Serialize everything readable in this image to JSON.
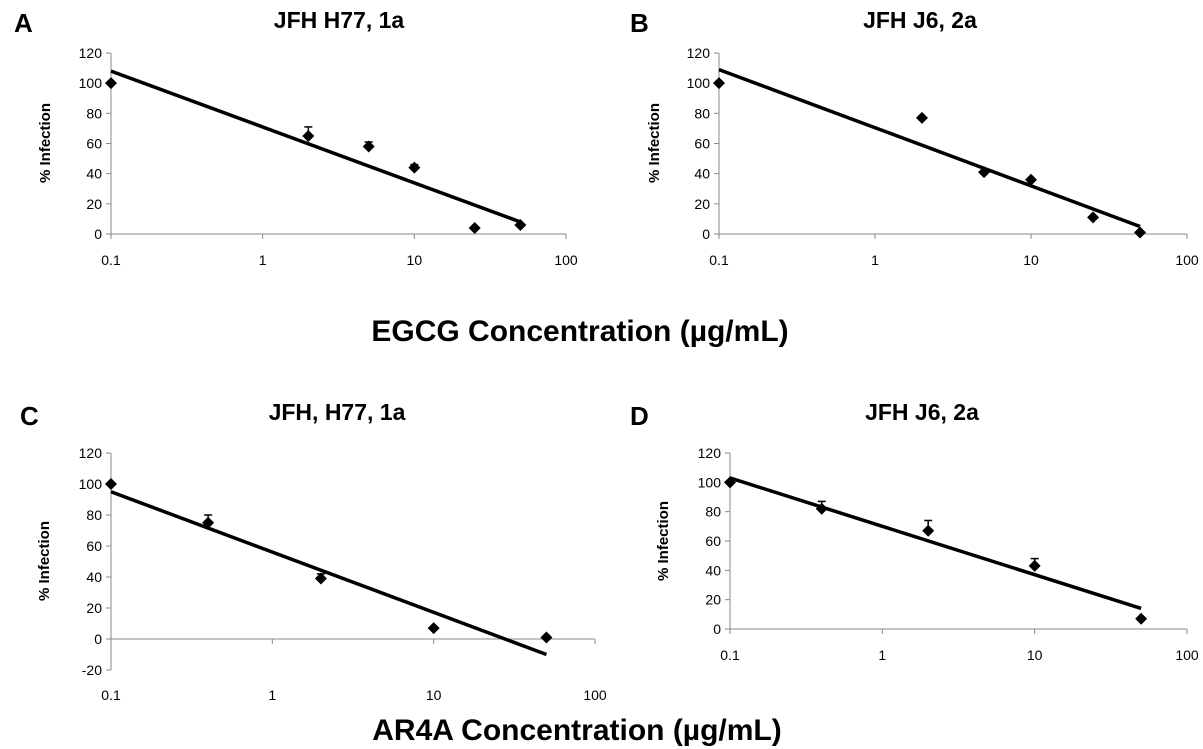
{
  "figure": {
    "xlabel_top": "EGCG Concentration (µg/mL)",
    "xlabel_bottom": "AR4A Concentration (µg/mL)"
  },
  "chart_data": [
    {
      "panel": "A",
      "type": "scatter",
      "title": "JFH H77, 1a",
      "ylabel": "% Infection",
      "xlabel": "",
      "xscale": "log",
      "xlim": [
        0.1,
        100
      ],
      "ylim": [
        0,
        120
      ],
      "xticks": [
        "0.1",
        "1",
        "10",
        "100"
      ],
      "yticks": [
        "0",
        "20",
        "40",
        "60",
        "80",
        "100",
        "120"
      ],
      "grid": false,
      "points": [
        {
          "x": 0.1,
          "y": 100,
          "err": 0
        },
        {
          "x": 2,
          "y": 65,
          "err": 6
        },
        {
          "x": 5,
          "y": 58,
          "err": 3
        },
        {
          "x": 10,
          "y": 44,
          "err": 2
        },
        {
          "x": 25,
          "y": 4,
          "err": 0
        },
        {
          "x": 50,
          "y": 6,
          "err": 0
        }
      ],
      "trendline": [
        {
          "x": 0.1,
          "y": 108
        },
        {
          "x": 50,
          "y": 8
        }
      ]
    },
    {
      "panel": "B",
      "type": "scatter",
      "title": "JFH J6, 2a",
      "ylabel": "% Infection",
      "xlabel": "",
      "xscale": "log",
      "xlim": [
        0.1,
        100
      ],
      "ylim": [
        0,
        120
      ],
      "xticks": [
        "0.1",
        "1",
        "10",
        "100"
      ],
      "yticks": [
        "0",
        "20",
        "40",
        "60",
        "80",
        "100",
        "120"
      ],
      "grid": false,
      "points": [
        {
          "x": 0.1,
          "y": 100,
          "err": 0
        },
        {
          "x": 2,
          "y": 77,
          "err": 0
        },
        {
          "x": 5,
          "y": 41,
          "err": 0
        },
        {
          "x": 10,
          "y": 36,
          "err": 0
        },
        {
          "x": 25,
          "y": 11,
          "err": 0
        },
        {
          "x": 50,
          "y": 1,
          "err": 0
        }
      ],
      "trendline": [
        {
          "x": 0.1,
          "y": 109
        },
        {
          "x": 50,
          "y": 5
        }
      ]
    },
    {
      "panel": "C",
      "type": "scatter",
      "title": "JFH, H77, 1a",
      "ylabel": "% Infection",
      "xlabel": "",
      "xscale": "log",
      "xlim": [
        0.1,
        100
      ],
      "ylim": [
        -20,
        120
      ],
      "xticks": [
        "0.1",
        "1",
        "10",
        "100"
      ],
      "yticks": [
        "-20",
        "0",
        "20",
        "40",
        "60",
        "80",
        "100",
        "120"
      ],
      "grid": false,
      "points": [
        {
          "x": 0.1,
          "y": 100,
          "err": 0
        },
        {
          "x": 0.4,
          "y": 75,
          "err": 5
        },
        {
          "x": 2,
          "y": 39,
          "err": 3
        },
        {
          "x": 10,
          "y": 7,
          "err": 0
        },
        {
          "x": 50,
          "y": 1,
          "err": 0
        }
      ],
      "trendline": [
        {
          "x": 0.1,
          "y": 95
        },
        {
          "x": 50,
          "y": -10
        }
      ]
    },
    {
      "panel": "D",
      "type": "scatter",
      "title": "JFH J6, 2a",
      "ylabel": "% Infection",
      "xlabel": "",
      "xscale": "log",
      "xlim": [
        0.1,
        100
      ],
      "ylim": [
        0,
        120
      ],
      "xticks": [
        "0.1",
        "1",
        "10",
        "100"
      ],
      "yticks": [
        "0",
        "20",
        "40",
        "60",
        "80",
        "100",
        "120"
      ],
      "grid": false,
      "points": [
        {
          "x": 0.1,
          "y": 100,
          "err": 0
        },
        {
          "x": 0.4,
          "y": 82,
          "err": 5
        },
        {
          "x": 2,
          "y": 67,
          "err": 7
        },
        {
          "x": 10,
          "y": 43,
          "err": 5
        },
        {
          "x": 50,
          "y": 7,
          "err": 0
        }
      ],
      "trendline": [
        {
          "x": 0.1,
          "y": 103
        },
        {
          "x": 50,
          "y": 14
        }
      ]
    }
  ]
}
